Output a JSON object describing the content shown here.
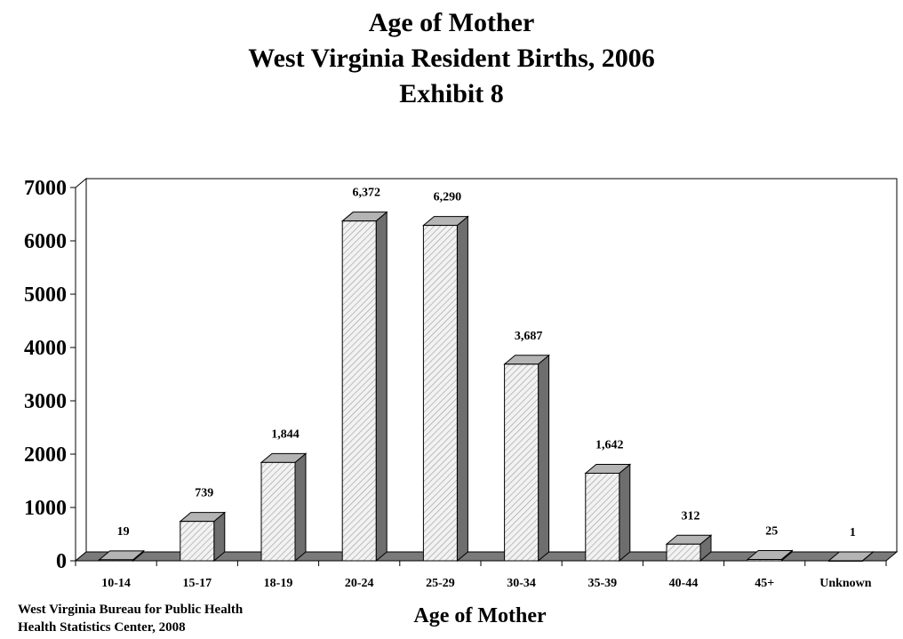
{
  "title_lines": [
    "Age of Mother",
    "West Virginia Resident Births, 2006",
    "Exhibit 8"
  ],
  "source_lines": [
    "West Virginia Bureau for Public Health",
    "Health Statistics Center, 2008"
  ],
  "chart_data": {
    "type": "bar",
    "title": "Age of Mother West Virginia Resident Births, 2006 Exhibit 8",
    "xlabel": "Age of Mother",
    "ylabel": "",
    "categories": [
      "10-14",
      "15-17",
      "18-19",
      "20-24",
      "25-29",
      "30-34",
      "35-39",
      "40-44",
      "45+",
      "Unknown"
    ],
    "values": [
      19,
      739,
      1844,
      6372,
      6290,
      3687,
      1642,
      312,
      25,
      1
    ],
    "data_labels": [
      "19",
      "739",
      "1,844",
      "6,372",
      "6,290",
      "3,687",
      "1,642",
      "312",
      "25",
      "1"
    ],
    "ylim": [
      0,
      7000
    ],
    "yticks": [
      0,
      1000,
      2000,
      3000,
      4000,
      5000,
      6000,
      7000
    ],
    "ytick_labels": [
      "0",
      "1000",
      "2000",
      "3000",
      "4000",
      "5000",
      "6000",
      "7000"
    ],
    "grid": false,
    "legend": "none",
    "style": "3d",
    "colors": {
      "bar_face": "#f2f2f2",
      "bar_hatch": "#9a9a9a",
      "bar_side": "#6e6e6e",
      "bar_top": "#b4b4b4",
      "floor": "#7a7a7a",
      "frame": "#000000"
    }
  }
}
